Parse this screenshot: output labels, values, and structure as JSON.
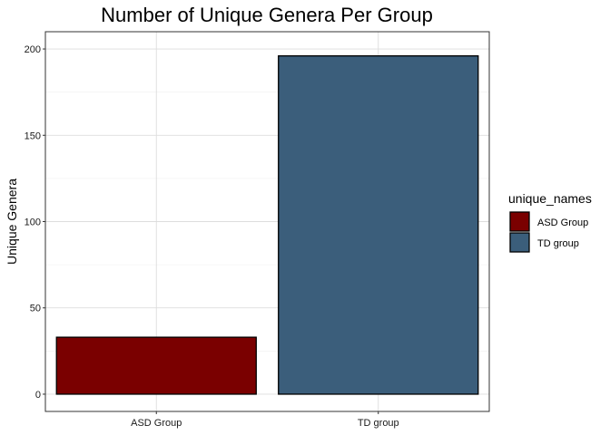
{
  "chart_data": {
    "type": "bar",
    "title": "Number of Unique Genera Per Group",
    "xlabel": "",
    "ylabel": "Unique Genera",
    "categories": [
      "ASD Group",
      "TD group"
    ],
    "values": [
      33,
      196
    ],
    "colors": [
      "#7a0000",
      "#3b5e7b"
    ],
    "ylim": [
      -10,
      210
    ],
    "yticks": [
      0,
      50,
      100,
      150,
      200
    ],
    "grid": true,
    "legend": {
      "title": "unique_names",
      "position": "right",
      "entries": [
        {
          "label": "ASD Group",
          "color": "#7a0000"
        },
        {
          "label": "TD group",
          "color": "#3b5e7b"
        }
      ]
    }
  }
}
